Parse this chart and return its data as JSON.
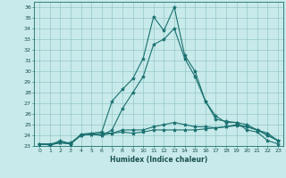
{
  "xlabel": "Humidex (Indice chaleur)",
  "ylabel": "",
  "background_color": "#c8eaea",
  "line_color": "#1a7070",
  "grid_color": "#8abfbf",
  "xlim": [
    -0.5,
    23.5
  ],
  "ylim": [
    23,
    36.5
  ],
  "xticks": [
    0,
    1,
    2,
    3,
    4,
    5,
    6,
    7,
    8,
    9,
    10,
    11,
    12,
    13,
    14,
    15,
    16,
    17,
    18,
    19,
    20,
    21,
    22,
    23
  ],
  "yticks": [
    23,
    24,
    25,
    26,
    27,
    28,
    29,
    30,
    31,
    32,
    33,
    34,
    35,
    36
  ],
  "series": [
    [
      23.2,
      23.1,
      23.5,
      23.2,
      24.1,
      24.2,
      24.3,
      27.2,
      28.3,
      29.3,
      31.2,
      35.1,
      33.8,
      36.0,
      31.5,
      30.0,
      27.2,
      25.5,
      25.3,
      25.2,
      24.5,
      24.3,
      23.5,
      23.2
    ],
    [
      23.2,
      23.1,
      23.3,
      23.2,
      24.0,
      24.1,
      24.0,
      24.2,
      24.3,
      24.2,
      24.3,
      24.5,
      24.5,
      24.5,
      24.5,
      24.5,
      24.6,
      24.7,
      24.8,
      25.0,
      24.8,
      24.5,
      24.0,
      23.5
    ],
    [
      23.2,
      23.1,
      23.3,
      23.2,
      24.0,
      24.1,
      24.2,
      24.2,
      24.5,
      24.5,
      24.5,
      24.8,
      25.0,
      25.2,
      25.0,
      24.8,
      24.8,
      24.7,
      24.8,
      24.9,
      24.8,
      24.5,
      24.2,
      23.5
    ],
    [
      23.2,
      23.2,
      23.3,
      23.3,
      24.0,
      24.1,
      24.0,
      24.5,
      26.5,
      28.0,
      29.5,
      32.5,
      33.0,
      34.0,
      31.2,
      29.5,
      27.2,
      25.8,
      25.2,
      25.2,
      25.0,
      24.5,
      24.0,
      23.5
    ]
  ]
}
